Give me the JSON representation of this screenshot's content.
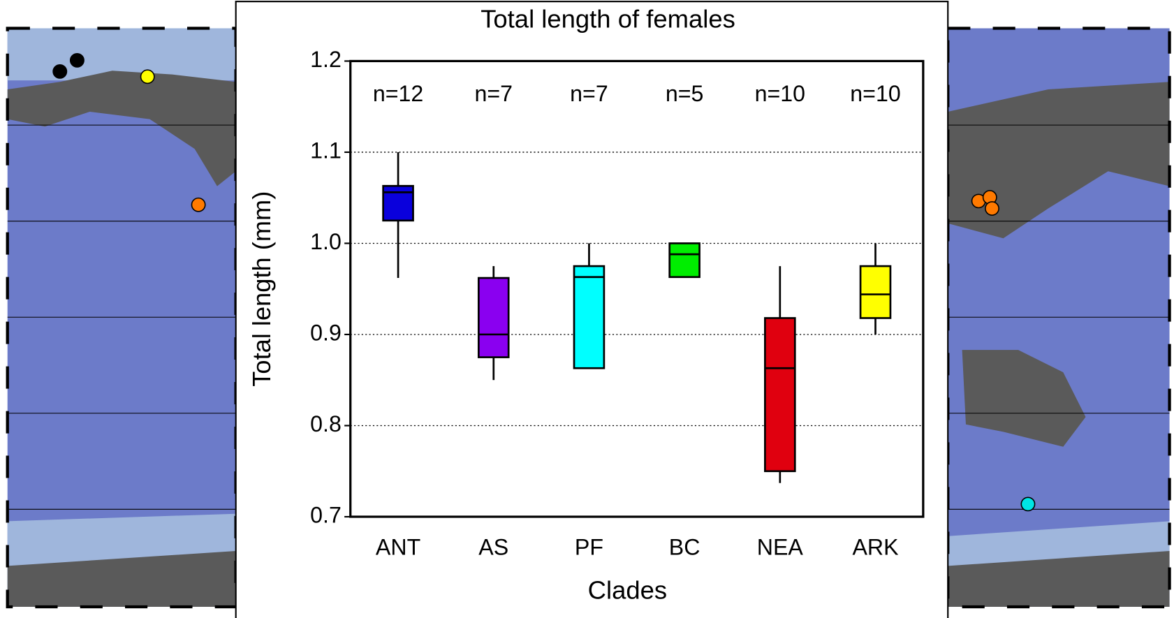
{
  "chart_data": {
    "type": "box",
    "title": "Total length of females",
    "xlabel": "Clades",
    "ylabel": "Total length (mm)",
    "categories": [
      "ANT",
      "AS",
      "PF",
      "BC",
      "NEA",
      "ARK"
    ],
    "n_labels": [
      "n=12",
      "n=7",
      "n=7",
      "n=5",
      "n=10",
      "n=10"
    ],
    "colors": [
      "#0a00dc",
      "#8a00f0",
      "#00ffff",
      "#00ee00",
      "#e0000f",
      "#ffff00"
    ],
    "boxes": [
      {
        "whisker_low": 0.962,
        "q1": 1.025,
        "median": 1.056,
        "q3": 1.063,
        "whisker_high": 1.1
      },
      {
        "whisker_low": 0.85,
        "q1": 0.875,
        "median": 0.9,
        "q3": 0.962,
        "whisker_high": 0.975
      },
      {
        "whisker_low": 0.863,
        "q1": 0.863,
        "median": 0.963,
        "q3": 0.975,
        "whisker_high": 1.0
      },
      {
        "whisker_low": 0.963,
        "q1": 0.963,
        "median": 0.988,
        "q3": 1.0,
        "whisker_high": 1.0
      },
      {
        "whisker_low": 0.737,
        "q1": 0.75,
        "median": 0.863,
        "q3": 0.918,
        "whisker_high": 0.975
      },
      {
        "whisker_low": 0.9,
        "q1": 0.918,
        "median": 0.944,
        "q3": 0.975,
        "whisker_high": 1.0
      }
    ],
    "ylim": [
      0.7,
      1.2
    ],
    "yticks": [
      0.7,
      0.8,
      0.9,
      {
        "value": 1.0,
        "label": "1.0"
      },
      1.1,
      1.2
    ],
    "grid": true
  }
}
